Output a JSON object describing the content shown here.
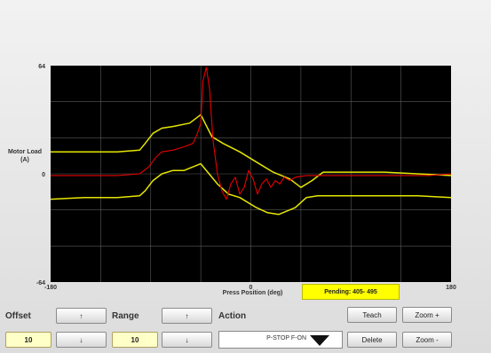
{
  "chart_data": {
    "type": "line",
    "xlabel": "Press Position (deg)",
    "ylabel": "Motor Load\n(A)",
    "xlim": [
      -180,
      180
    ],
    "ylim": [
      -64,
      64
    ],
    "x_ticks": [
      "-180",
      "0",
      "180"
    ],
    "y_ticks": [
      "64",
      "0",
      "-64"
    ],
    "grid": true,
    "series": [
      {
        "color": "#e6e600",
        "points": [
          [
            -180,
            13
          ],
          [
            -150,
            13
          ],
          [
            -120,
            13
          ],
          [
            -100,
            14
          ],
          [
            -95,
            18
          ],
          [
            -88,
            24
          ],
          [
            -80,
            27
          ],
          [
            -70,
            28
          ],
          [
            -55,
            30
          ],
          [
            -45,
            35
          ],
          [
            -35,
            22
          ],
          [
            -25,
            18
          ],
          [
            -10,
            13
          ],
          [
            5,
            7
          ],
          [
            20,
            1
          ],
          [
            35,
            -3
          ],
          [
            45,
            -8
          ],
          [
            55,
            -4
          ],
          [
            65,
            1
          ],
          [
            75,
            1
          ],
          [
            90,
            1
          ],
          [
            120,
            1
          ],
          [
            150,
            0
          ],
          [
            180,
            -1
          ]
        ]
      },
      {
        "color": "#e6e600",
        "points": [
          [
            -180,
            -15
          ],
          [
            -150,
            -14
          ],
          [
            -120,
            -14
          ],
          [
            -100,
            -13
          ],
          [
            -95,
            -10
          ],
          [
            -88,
            -4
          ],
          [
            -80,
            0
          ],
          [
            -70,
            2
          ],
          [
            -60,
            2
          ],
          [
            -45,
            6
          ],
          [
            -30,
            -6
          ],
          [
            -20,
            -12
          ],
          [
            -10,
            -14
          ],
          [
            5,
            -20
          ],
          [
            15,
            -23
          ],
          [
            25,
            -24
          ],
          [
            40,
            -20
          ],
          [
            50,
            -14
          ],
          [
            60,
            -13
          ],
          [
            90,
            -13
          ],
          [
            120,
            -13
          ],
          [
            150,
            -13
          ],
          [
            180,
            -14
          ]
        ]
      },
      {
        "color": "#e60000",
        "points": [
          [
            -180,
            -1
          ],
          [
            -150,
            -1
          ],
          [
            -120,
            -1
          ],
          [
            -100,
            0
          ],
          [
            -92,
            4
          ],
          [
            -85,
            10
          ],
          [
            -80,
            13
          ],
          [
            -70,
            14
          ],
          [
            -60,
            16
          ],
          [
            -52,
            18
          ],
          [
            -48,
            24
          ],
          [
            -45,
            30
          ],
          [
            -43,
            55
          ],
          [
            -40,
            63
          ],
          [
            -37,
            50
          ],
          [
            -34,
            20
          ],
          [
            -30,
            0
          ],
          [
            -26,
            -10
          ],
          [
            -22,
            -15
          ],
          [
            -18,
            -6
          ],
          [
            -14,
            -2
          ],
          [
            -10,
            -12
          ],
          [
            -6,
            -8
          ],
          [
            -2,
            2
          ],
          [
            2,
            -3
          ],
          [
            6,
            -12
          ],
          [
            10,
            -6
          ],
          [
            14,
            -3
          ],
          [
            18,
            -8
          ],
          [
            22,
            -4
          ],
          [
            26,
            -6
          ],
          [
            30,
            -2
          ],
          [
            35,
            -4
          ],
          [
            40,
            -2
          ],
          [
            50,
            -1
          ],
          [
            70,
            -1
          ],
          [
            100,
            -1
          ],
          [
            130,
            -1
          ],
          [
            160,
            -1
          ],
          [
            180,
            0
          ]
        ]
      }
    ]
  },
  "pending": "Pending: 405- 495",
  "controls": {
    "offset_label": "Offset",
    "offset_value": "10",
    "range_label": "Range",
    "range_value": "10",
    "action_label": "Action",
    "action_value": "P-STOP F-ON",
    "up_glyph": "↑",
    "down_glyph": "↓",
    "teach_label": "Teach",
    "delete_label": "Delete",
    "zoom_in_label": "Zoom +",
    "zoom_out_label": "Zoom -"
  }
}
